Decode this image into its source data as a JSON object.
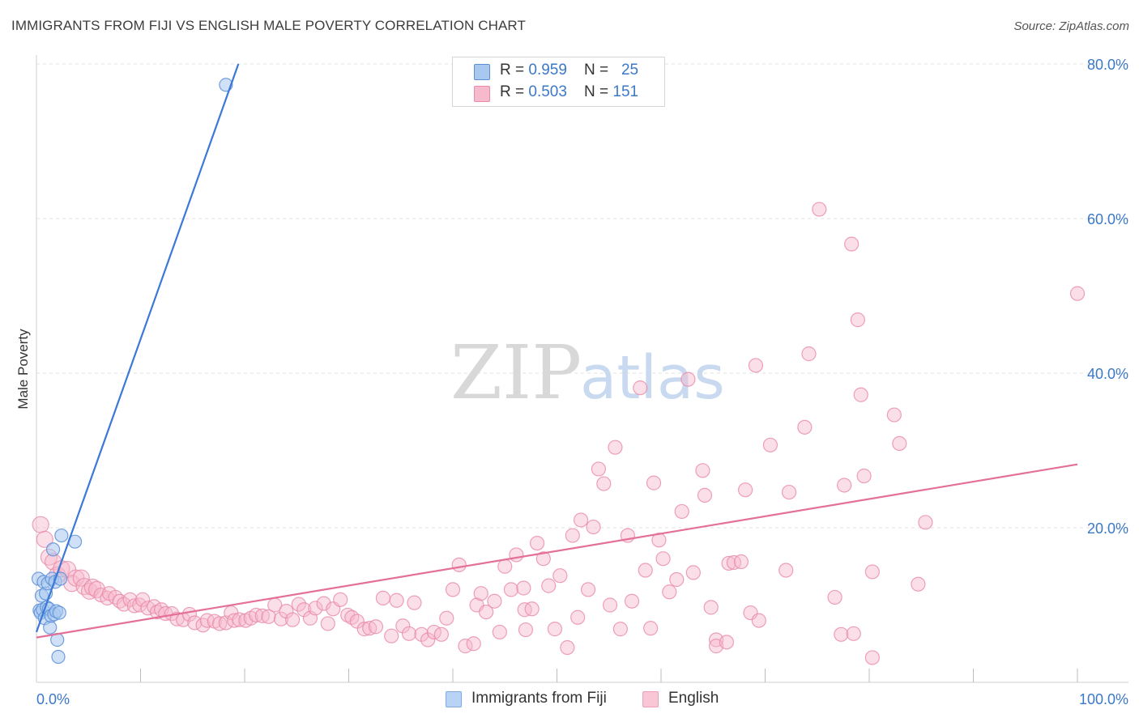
{
  "title": "IMMIGRANTS FROM FIJI VS ENGLISH MALE POVERTY CORRELATION CHART",
  "source": "Source: ZipAtlas.com",
  "watermark": {
    "zip": "ZIP",
    "atlas": "atlas"
  },
  "legend": [
    {
      "r_label": "R = ",
      "r_value": "0.959",
      "n_label": "N = ",
      "n_value": "25"
    },
    {
      "r_label": "R = ",
      "r_value": "0.503",
      "n_label": "N = ",
      "n_value": "151"
    }
  ],
  "chart_data": {
    "type": "scatter",
    "title": "IMMIGRANTS FROM FIJI VS ENGLISH MALE POVERTY CORRELATION CHART",
    "xlabel": "",
    "ylabel": "Male Poverty",
    "xlim": [
      0,
      100
    ],
    "ylim": [
      0,
      80
    ],
    "x_tick_labels": [
      "0.0%",
      "100.0%"
    ],
    "y_tick_labels": [
      "20.0%",
      "40.0%",
      "60.0%",
      "80.0%"
    ],
    "y_ticks": [
      20,
      40,
      60,
      80
    ],
    "x_minor_ticks": [
      10,
      20,
      30,
      40,
      50,
      60,
      70,
      80,
      90,
      100
    ],
    "colors": {
      "fiji_fill": "#a9c8f0",
      "fiji_stroke": "#5a8fd6",
      "fiji_line": "#3b78d8",
      "english_fill": "#f7b9cc",
      "english_stroke": "#e98aa8",
      "english_line": "#e46f97",
      "grid": "#e2e2e2",
      "tick_label": "#3b78c8"
    },
    "series": [
      {
        "name": "Immigrants from Fiji",
        "R": 0.959,
        "N": 25,
        "trend": {
          "x": [
            0,
            19.4
          ],
          "y": [
            6.5,
            80
          ]
        },
        "points": [
          [
            0.2,
            13.4
          ],
          [
            0.3,
            9.3
          ],
          [
            0.4,
            9.0
          ],
          [
            0.5,
            11.2
          ],
          [
            0.6,
            9.4
          ],
          [
            0.7,
            13.0
          ],
          [
            0.8,
            8.3
          ],
          [
            0.9,
            11.5
          ],
          [
            1.0,
            9.7
          ],
          [
            1.1,
            12.8
          ],
          [
            1.2,
            9.5
          ],
          [
            1.3,
            7.1
          ],
          [
            1.4,
            8.6
          ],
          [
            1.5,
            13.4
          ],
          [
            1.6,
            17.2
          ],
          [
            1.7,
            8.8
          ],
          [
            1.8,
            13.0
          ],
          [
            1.9,
            9.2
          ],
          [
            2.0,
            5.5
          ],
          [
            2.1,
            3.3
          ],
          [
            2.2,
            9.0
          ],
          [
            2.3,
            13.4
          ],
          [
            2.4,
            19.0
          ],
          [
            3.7,
            18.2
          ],
          [
            18.2,
            77.3
          ]
        ]
      },
      {
        "name": "English",
        "R": 0.503,
        "N": 151,
        "trend": {
          "x": [
            0,
            100
          ],
          "y": [
            5.8,
            28.2
          ]
        },
        "points": [
          [
            0.4,
            20.4
          ],
          [
            0.8,
            18.5
          ],
          [
            1.2,
            16.2
          ],
          [
            1.6,
            15.6
          ],
          [
            2.0,
            13.9
          ],
          [
            2.4,
            14.7
          ],
          [
            3.0,
            14.6
          ],
          [
            3.4,
            12.8
          ],
          [
            3.8,
            13.5
          ],
          [
            4.3,
            13.5
          ],
          [
            4.6,
            12.4
          ],
          [
            5.1,
            11.8
          ],
          [
            5.4,
            12.3
          ],
          [
            5.8,
            12.0
          ],
          [
            6.2,
            11.3
          ],
          [
            6.8,
            10.9
          ],
          [
            7.0,
            11.5
          ],
          [
            7.6,
            11.0
          ],
          [
            8.0,
            10.5
          ],
          [
            8.4,
            10.1
          ],
          [
            9.0,
            10.7
          ],
          [
            9.4,
            9.9
          ],
          [
            9.9,
            10.0
          ],
          [
            10.2,
            10.7
          ],
          [
            10.7,
            9.6
          ],
          [
            11.3,
            9.8
          ],
          [
            11.6,
            9.1
          ],
          [
            12.0,
            9.4
          ],
          [
            12.4,
            8.9
          ],
          [
            13.0,
            8.9
          ],
          [
            13.5,
            8.2
          ],
          [
            14.1,
            8.1
          ],
          [
            14.7,
            8.8
          ],
          [
            15.2,
            7.7
          ],
          [
            16.0,
            7.4
          ],
          [
            16.4,
            8.0
          ],
          [
            17.1,
            7.9
          ],
          [
            17.6,
            7.6
          ],
          [
            18.2,
            7.7
          ],
          [
            18.7,
            9.0
          ],
          [
            19.0,
            8.0
          ],
          [
            19.5,
            8.1
          ],
          [
            20.1,
            8.0
          ],
          [
            20.6,
            8.3
          ],
          [
            21.1,
            8.7
          ],
          [
            21.7,
            8.6
          ],
          [
            22.3,
            8.5
          ],
          [
            22.9,
            10.0
          ],
          [
            23.5,
            8.2
          ],
          [
            24.0,
            9.2
          ],
          [
            24.6,
            8.1
          ],
          [
            25.2,
            10.1
          ],
          [
            25.7,
            9.4
          ],
          [
            26.3,
            8.3
          ],
          [
            26.8,
            9.6
          ],
          [
            27.6,
            10.2
          ],
          [
            28.0,
            7.6
          ],
          [
            28.5,
            9.5
          ],
          [
            29.2,
            10.7
          ],
          [
            29.9,
            8.7
          ],
          [
            30.3,
            8.4
          ],
          [
            30.8,
            7.9
          ],
          [
            31.5,
            6.9
          ],
          [
            32.0,
            7.0
          ],
          [
            32.6,
            7.2
          ],
          [
            33.3,
            10.9
          ],
          [
            34.1,
            6.0
          ],
          [
            34.6,
            10.6
          ],
          [
            35.2,
            7.3
          ],
          [
            35.8,
            6.3
          ],
          [
            36.3,
            10.3
          ],
          [
            37.0,
            6.2
          ],
          [
            37.6,
            5.5
          ],
          [
            38.2,
            6.5
          ],
          [
            38.9,
            6.2
          ],
          [
            39.4,
            8.3
          ],
          [
            40.0,
            12.0
          ],
          [
            40.6,
            15.2
          ],
          [
            41.2,
            4.7
          ],
          [
            42.0,
            5.0
          ],
          [
            42.3,
            10.0
          ],
          [
            42.7,
            11.5
          ],
          [
            43.2,
            9.1
          ],
          [
            44.0,
            10.5
          ],
          [
            44.5,
            6.5
          ],
          [
            45.0,
            15.0
          ],
          [
            45.6,
            12.0
          ],
          [
            46.1,
            16.5
          ],
          [
            46.8,
            12.2
          ],
          [
            46.9,
            9.4
          ],
          [
            47.0,
            6.8
          ],
          [
            47.6,
            9.5
          ],
          [
            48.1,
            18.0
          ],
          [
            48.7,
            16.0
          ],
          [
            49.2,
            12.5
          ],
          [
            49.8,
            6.9
          ],
          [
            50.3,
            13.8
          ],
          [
            51.0,
            4.5
          ],
          [
            51.5,
            19.0
          ],
          [
            52.0,
            8.4
          ],
          [
            52.3,
            21.0
          ],
          [
            53.0,
            12.0
          ],
          [
            53.5,
            20.1
          ],
          [
            54.0,
            27.6
          ],
          [
            54.5,
            25.7
          ],
          [
            55.1,
            10.0
          ],
          [
            55.6,
            30.4
          ],
          [
            56.1,
            6.9
          ],
          [
            56.8,
            19.0
          ],
          [
            57.2,
            10.5
          ],
          [
            58.0,
            38.1
          ],
          [
            58.5,
            14.5
          ],
          [
            59.0,
            7.0
          ],
          [
            59.3,
            25.8
          ],
          [
            59.8,
            18.4
          ],
          [
            60.2,
            16.0
          ],
          [
            60.8,
            11.7
          ],
          [
            61.5,
            13.3
          ],
          [
            62.0,
            22.1
          ],
          [
            62.6,
            39.2
          ],
          [
            63.1,
            14.2
          ],
          [
            64.0,
            27.4
          ],
          [
            64.2,
            24.2
          ],
          [
            64.8,
            9.7
          ],
          [
            65.3,
            5.5
          ],
          [
            65.3,
            4.7
          ],
          [
            66.3,
            5.2
          ],
          [
            66.5,
            15.4
          ],
          [
            67.0,
            15.5
          ],
          [
            67.7,
            15.6
          ],
          [
            68.1,
            24.9
          ],
          [
            68.6,
            9.0
          ],
          [
            69.1,
            41.0
          ],
          [
            69.4,
            8.0
          ],
          [
            70.5,
            30.7
          ],
          [
            72.0,
            14.5
          ],
          [
            72.3,
            24.6
          ],
          [
            73.8,
            33.0
          ],
          [
            74.2,
            42.5
          ],
          [
            75.2,
            61.2
          ],
          [
            76.7,
            11.0
          ],
          [
            77.3,
            6.2
          ],
          [
            77.6,
            25.5
          ],
          [
            78.3,
            56.7
          ],
          [
            78.5,
            6.3
          ],
          [
            78.9,
            46.9
          ],
          [
            79.2,
            37.2
          ],
          [
            79.5,
            26.7
          ],
          [
            80.3,
            14.3
          ],
          [
            80.3,
            3.2
          ],
          [
            82.4,
            34.6
          ],
          [
            82.9,
            30.9
          ],
          [
            84.7,
            12.7
          ],
          [
            85.4,
            20.7
          ],
          [
            100.0,
            50.3
          ]
        ]
      }
    ]
  },
  "bottom_legend": [
    {
      "label": "Immigrants from Fiji"
    },
    {
      "label": "English"
    }
  ]
}
